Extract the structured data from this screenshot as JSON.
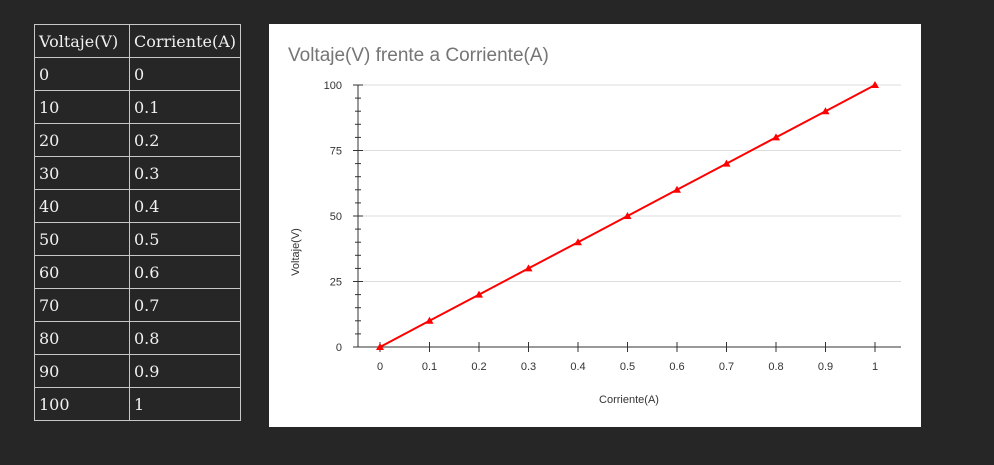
{
  "table": {
    "headers": [
      "Voltaje(V)",
      "Corriente(A)"
    ],
    "rows": [
      [
        "0",
        "0"
      ],
      [
        "10",
        "0.1"
      ],
      [
        "20",
        "0.2"
      ],
      [
        "30",
        "0.3"
      ],
      [
        "40",
        "0.4"
      ],
      [
        "50",
        "0.5"
      ],
      [
        "60",
        "0.6"
      ],
      [
        "70",
        "0.7"
      ],
      [
        "80",
        "0.8"
      ],
      [
        "90",
        "0.9"
      ],
      [
        "100",
        "1"
      ]
    ]
  },
  "chart_data": {
    "type": "line",
    "title": "Voltaje(V) frente a Corriente(A)",
    "xlabel": "Corriente(A)",
    "ylabel": "Voltaje(V)",
    "x": [
      0,
      0.1,
      0.2,
      0.3,
      0.4,
      0.5,
      0.6,
      0.7,
      0.8,
      0.9,
      1
    ],
    "series": [
      {
        "values": [
          0,
          10,
          20,
          30,
          40,
          50,
          60,
          70,
          80,
          90,
          100
        ],
        "color": "#ff0000",
        "marker": "triangle"
      }
    ],
    "xticks": [
      "0",
      "0.1",
      "0.2",
      "0.3",
      "0.4",
      "0.5",
      "0.6",
      "0.7",
      "0.8",
      "0.9",
      "1"
    ],
    "yticks": [
      "0",
      "25",
      "50",
      "75",
      "100"
    ],
    "xlim": [
      0,
      1
    ],
    "ylim": [
      0,
      100
    ],
    "grid": true,
    "colors": {
      "gridline": "#dddddd",
      "axis": "#333333",
      "line": "#ff0000"
    }
  }
}
